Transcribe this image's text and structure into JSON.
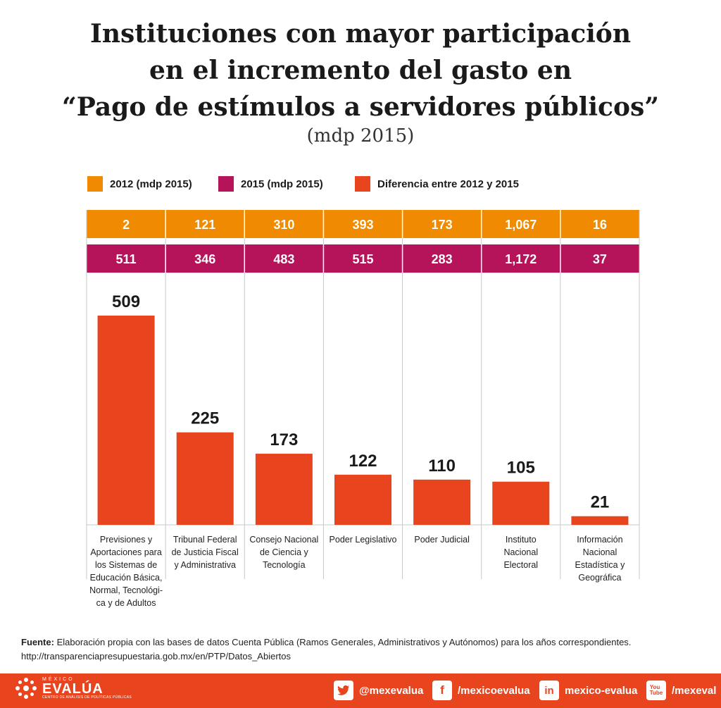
{
  "title": {
    "line1": "Instituciones con mayor participación",
    "line2": "en el incremento del gasto en",
    "line3": "“Pago de estímulos a servidores públicos”"
  },
  "subtitle": "(mdp 2015)",
  "colors": {
    "y2012": "#f08a00",
    "y2015": "#b5135a",
    "diff": "#e8441e",
    "grid": "#c8c8c8"
  },
  "chart_data": {
    "type": "bar",
    "title": "Instituciones con mayor participación en el incremento del gasto en “Pago de estímulos a servidores públicos”",
    "subtitle": "(mdp 2015)",
    "legend": [
      {
        "key": "y2012",
        "label": "2012 (mdp 2015)"
      },
      {
        "key": "y2015",
        "label": "2015 (mdp 2015)"
      },
      {
        "key": "diff",
        "label": "Diferencia entre 2012 y 2015"
      }
    ],
    "categories": [
      [
        "Previsiones y",
        "Aportaciones para",
        "los Sistemas de",
        "Educación Básica,",
        "Normal, Tecnológi-",
        "ca y de Adultos"
      ],
      [
        "Tribunal Federal",
        "de Justicia Fiscal",
        "y Administrativa"
      ],
      [
        "Consejo Nacional",
        "de Ciencia y",
        "Tecnología"
      ],
      [
        "Poder Legislativo"
      ],
      [
        "Poder Judicial"
      ],
      [
        "Instituto",
        "Nacional",
        "Electoral"
      ],
      [
        "Información",
        "Nacional",
        "Estadística y",
        "Geográfica"
      ]
    ],
    "values_2012": [
      2,
      121,
      310,
      393,
      173,
      1067,
      16
    ],
    "labels_2012": [
      "2",
      "121",
      "310",
      "393",
      "173",
      "1,067",
      "16"
    ],
    "values_2015": [
      511,
      346,
      483,
      515,
      283,
      1172,
      37
    ],
    "labels_2015": [
      "511",
      "346",
      "483",
      "515",
      "283",
      "1,172",
      "37"
    ],
    "diff_values": [
      509,
      225,
      173,
      122,
      110,
      105,
      21
    ],
    "diff_labels": [
      "509",
      "225",
      "173",
      "122",
      "110",
      "105",
      "21"
    ],
    "ylim": [
      0,
      509
    ]
  },
  "source": {
    "label": "Fuente:",
    "text": "Elaboración propia con las bases de datos Cuenta Pública (Ramos Generales, Administrativos y Autónomos) para los años correspondientes.",
    "url": "http://transparenciapresupuestaria.gob.mx/en/PTP/Datos_Abiertos"
  },
  "footer": {
    "logo_small": "MÉXICO",
    "logo_big": "EVALÚA",
    "logo_tag": "CENTRO DE ANÁLISIS DE POLÍTICAS PÚBLICAS",
    "twitter": "@mexevalua",
    "facebook": "/mexicoevalua",
    "linkedin": "mexico-evalua",
    "youtube": "/mexeval"
  }
}
